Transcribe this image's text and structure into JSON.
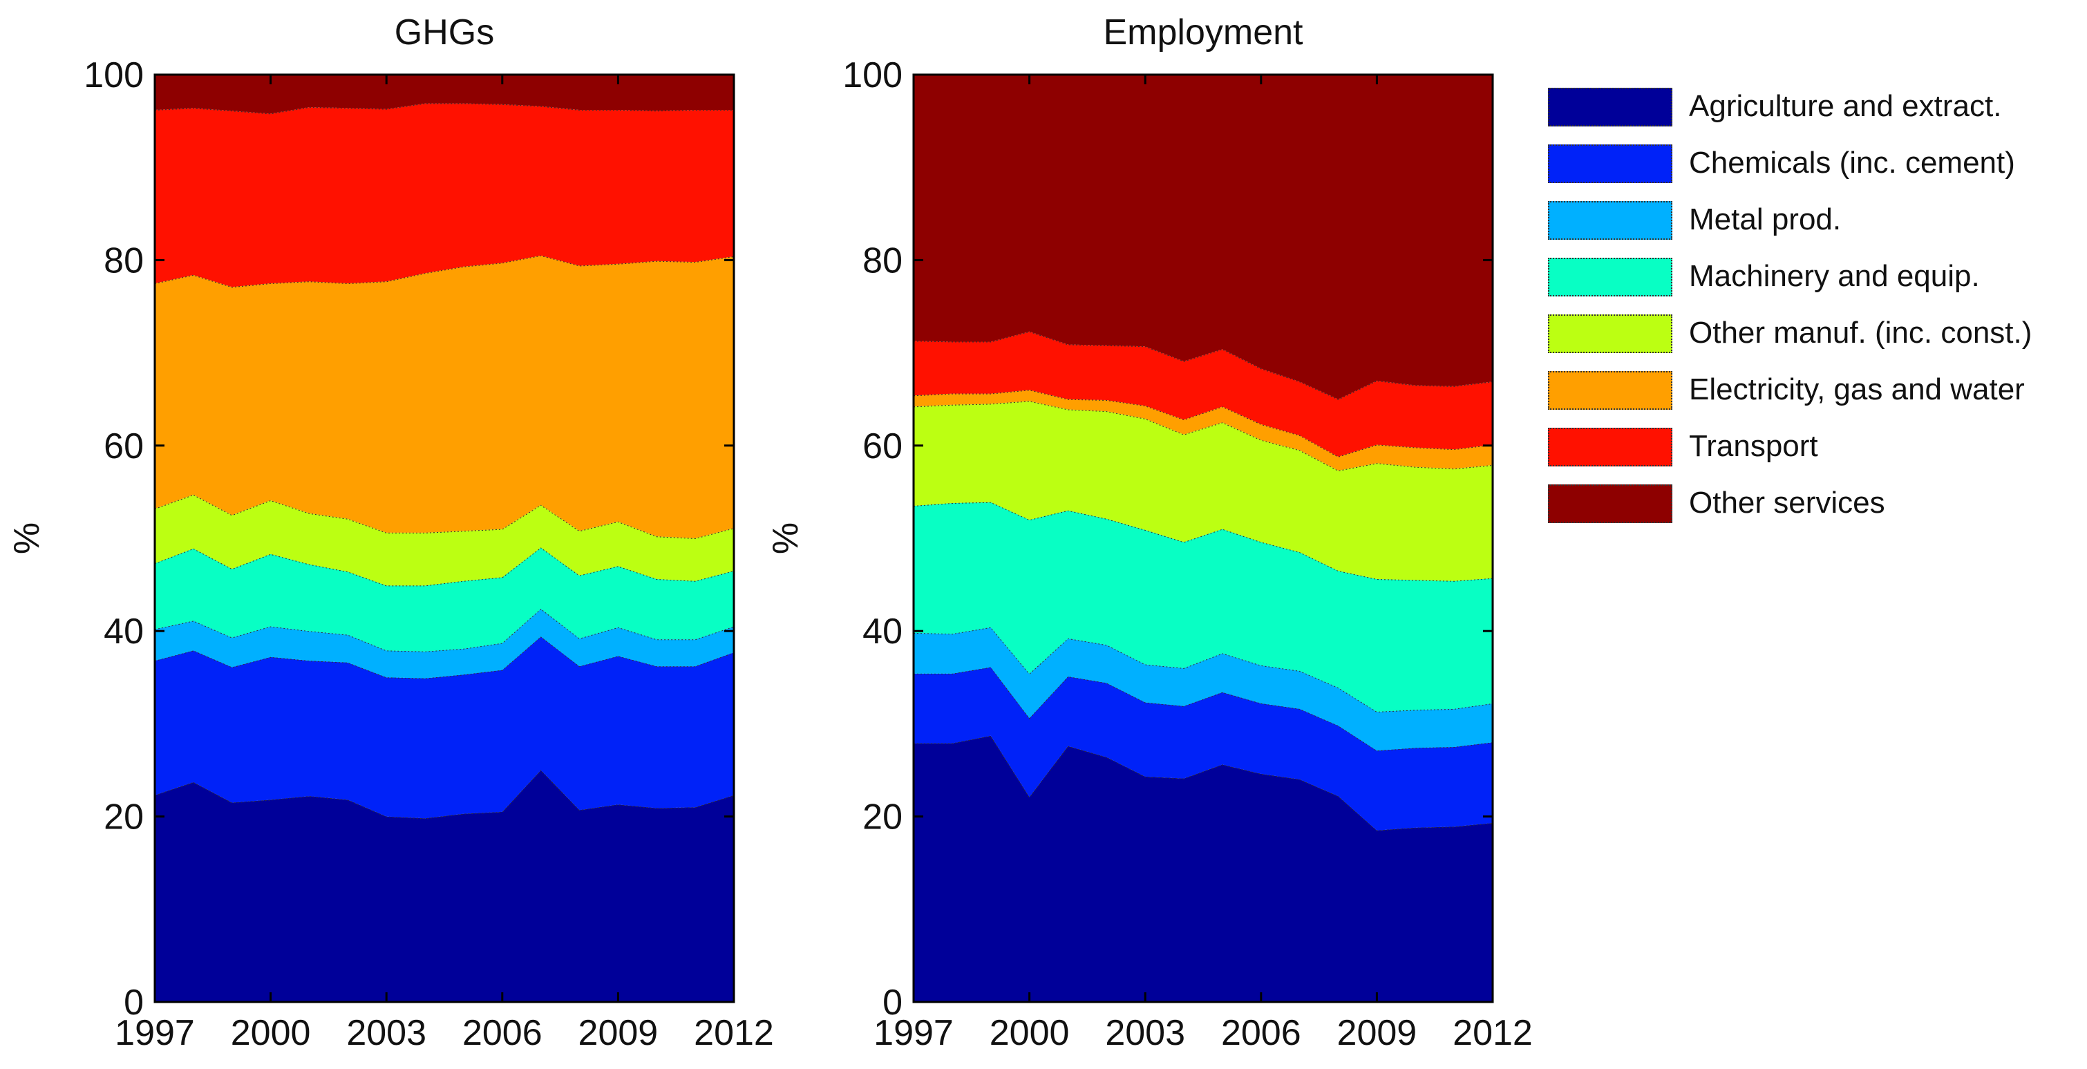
{
  "chart_data": [
    {
      "type": "area",
      "stacked": true,
      "title": "GHGs",
      "xlabel": "",
      "ylabel": "%",
      "xlim": [
        1997,
        2012
      ],
      "ylim": [
        0,
        100
      ],
      "x": [
        1997,
        1998,
        1999,
        2000,
        2001,
        2002,
        2003,
        2004,
        2005,
        2006,
        2007,
        2008,
        2009,
        2010,
        2011,
        2012
      ],
      "xticks": [
        "1997",
        "2000",
        "2003",
        "2006",
        "2009",
        "2012"
      ],
      "yticks": [
        "0",
        "20",
        "40",
        "60",
        "80",
        "100"
      ],
      "series": [
        {
          "name": "Agriculture and extract.",
          "values": [
            22.3,
            23.7,
            21.5,
            21.8,
            22.2,
            21.8,
            20.0,
            19.8,
            20.3,
            20.5,
            25.0,
            20.7,
            21.3,
            20.9,
            21.0,
            22.3
          ]
        },
        {
          "name": "Chemicals (inc. cement)",
          "values": [
            14.5,
            14.2,
            14.6,
            15.4,
            14.6,
            14.8,
            15.0,
            15.1,
            15.0,
            15.3,
            14.4,
            15.5,
            16.0,
            15.3,
            15.2,
            15.4
          ]
        },
        {
          "name": "Metal prod.",
          "values": [
            3.4,
            3.2,
            3.2,
            3.3,
            3.2,
            3.0,
            2.9,
            2.9,
            2.8,
            2.9,
            3.0,
            3.0,
            3.1,
            2.9,
            2.9,
            2.8
          ]
        },
        {
          "name": "Machinery and equip.",
          "values": [
            7.1,
            7.8,
            7.4,
            7.8,
            7.2,
            6.8,
            7.0,
            7.1,
            7.3,
            7.1,
            6.6,
            6.8,
            6.6,
            6.5,
            6.3,
            6.0
          ]
        },
        {
          "name": "Other manuf. (inc. const.)",
          "values": [
            5.9,
            5.8,
            5.8,
            5.8,
            5.5,
            5.7,
            5.7,
            5.7,
            5.4,
            5.2,
            4.6,
            4.8,
            4.8,
            4.6,
            4.6,
            4.6
          ]
        },
        {
          "name": "Electricity, gas and water",
          "values": [
            24.3,
            23.7,
            24.6,
            23.4,
            25.0,
            25.4,
            27.1,
            28.0,
            28.5,
            28.7,
            26.9,
            28.6,
            27.8,
            29.7,
            29.8,
            29.3
          ]
        },
        {
          "name": "Transport",
          "values": [
            18.7,
            18.0,
            19.0,
            18.3,
            18.8,
            18.9,
            18.6,
            18.3,
            17.6,
            17.1,
            16.1,
            16.8,
            16.6,
            16.2,
            16.4,
            15.8
          ]
        },
        {
          "name": "Other services",
          "values": [
            3.8,
            3.6,
            3.9,
            4.2,
            3.5,
            3.6,
            3.7,
            3.1,
            3.1,
            3.2,
            3.4,
            3.8,
            3.8,
            3.9,
            3.8,
            3.8
          ]
        }
      ]
    },
    {
      "type": "area",
      "stacked": true,
      "title": "Employment",
      "xlabel": "",
      "ylabel": "%",
      "xlim": [
        1997,
        2012
      ],
      "ylim": [
        0,
        100
      ],
      "x": [
        1997,
        1998,
        1999,
        2000,
        2001,
        2002,
        2003,
        2004,
        2005,
        2006,
        2007,
        2008,
        2009,
        2010,
        2011,
        2012
      ],
      "xticks": [
        "1997",
        "2000",
        "2003",
        "2006",
        "2009",
        "2012"
      ],
      "yticks": [
        "0",
        "20",
        "40",
        "60",
        "80",
        "100"
      ],
      "series": [
        {
          "name": "Agriculture and extract.",
          "values": [
            27.9,
            27.9,
            28.7,
            22.1,
            27.6,
            26.4,
            24.3,
            24.1,
            25.6,
            24.6,
            24.0,
            22.2,
            18.5,
            18.8,
            18.9,
            19.3
          ]
        },
        {
          "name": "Chemicals (inc. cement)",
          "values": [
            7.5,
            7.5,
            7.4,
            8.5,
            7.5,
            8.0,
            8.0,
            7.8,
            7.8,
            7.6,
            7.6,
            7.6,
            8.6,
            8.6,
            8.6,
            8.7
          ]
        },
        {
          "name": "Metal prod.",
          "values": [
            4.4,
            4.3,
            4.3,
            4.8,
            4.1,
            4.1,
            4.1,
            4.1,
            4.2,
            4.1,
            4.1,
            4.1,
            4.2,
            4.1,
            4.1,
            4.2
          ]
        },
        {
          "name": "Machinery and equip.",
          "values": [
            13.7,
            14.1,
            13.5,
            16.6,
            13.8,
            13.6,
            14.5,
            13.6,
            13.4,
            13.3,
            12.8,
            12.6,
            14.3,
            14.0,
            13.8,
            13.5
          ]
        },
        {
          "name": "Other manuf. (inc. const.)",
          "values": [
            10.7,
            10.6,
            10.6,
            12.8,
            10.9,
            11.6,
            12.0,
            11.6,
            11.5,
            11.0,
            11.0,
            10.8,
            12.5,
            12.2,
            12.1,
            12.2
          ]
        },
        {
          "name": "Electricity, gas and water",
          "values": [
            1.2,
            1.2,
            1.1,
            1.2,
            1.1,
            1.2,
            1.4,
            1.6,
            1.7,
            1.7,
            1.6,
            1.5,
            2.0,
            2.1,
            2.1,
            2.2
          ]
        },
        {
          "name": "Transport",
          "values": [
            5.9,
            5.6,
            5.6,
            6.3,
            5.9,
            5.9,
            6.4,
            6.3,
            6.2,
            6.0,
            5.8,
            6.2,
            6.9,
            6.7,
            6.8,
            6.8
          ]
        },
        {
          "name": "Other services",
          "values": [
            28.7,
            28.8,
            28.8,
            27.7,
            29.1,
            29.2,
            29.3,
            30.9,
            29.6,
            31.7,
            33.1,
            35.0,
            33.0,
            33.5,
            33.6,
            33.1
          ]
        }
      ]
    }
  ],
  "legend": {
    "items": [
      {
        "label": "Agriculture and extract.",
        "color": "#000099"
      },
      {
        "label": "Chemicals (inc. cement)",
        "color": "#0022f8"
      },
      {
        "label": "Metal prod.",
        "color": "#00b0ff"
      },
      {
        "label": "Machinery and equip.",
        "color": "#08ffc4"
      },
      {
        "label": "Other manuf. (inc. const.)",
        "color": "#bcff12"
      },
      {
        "label": "Electricity, gas and water",
        "color": "#ff9f00"
      },
      {
        "label": "Transport",
        "color": "#ff1100"
      },
      {
        "label": "Other services",
        "color": "#8e0000"
      }
    ]
  }
}
